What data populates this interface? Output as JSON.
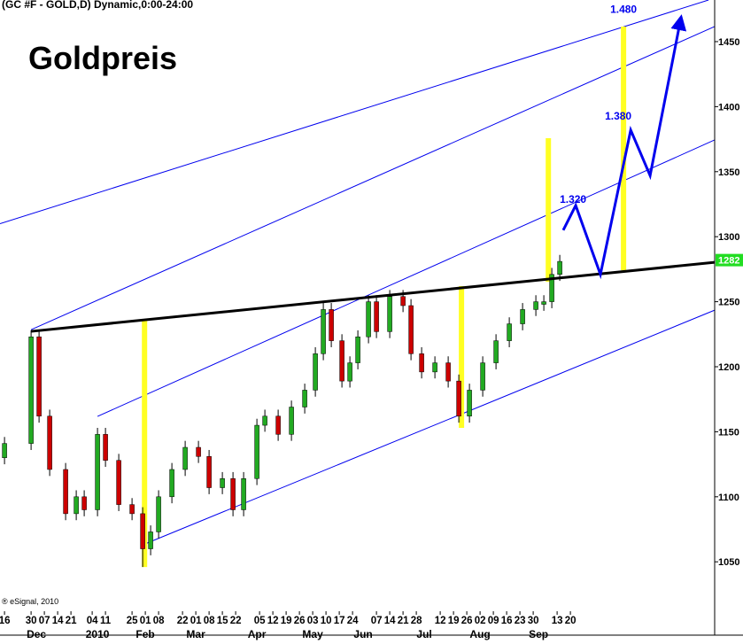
{
  "chart_data": {
    "type": "candlestick",
    "header": "(GC #F - GOLD,D) Dynamic,0:00-24:00",
    "title": "Goldpreis",
    "footer": "® eSignal, 2010",
    "xlim": [
      -1.7,
      267.3
    ],
    "ylim": [
      1012,
      1482
    ],
    "yticks": [
      1050,
      1100,
      1150,
      1200,
      1250,
      1300,
      1350,
      1400,
      1450
    ],
    "xticks": [
      {
        "value": 0,
        "label": "16"
      },
      {
        "value": 10,
        "label": "30"
      },
      {
        "value": 15,
        "label": "07"
      },
      {
        "value": 20,
        "label": "14"
      },
      {
        "value": 25,
        "label": "21"
      },
      {
        "value": 33,
        "label": "04"
      },
      {
        "value": 38,
        "label": "11"
      },
      {
        "value": 48,
        "label": "25"
      },
      {
        "value": 53,
        "label": "01"
      },
      {
        "value": 58,
        "label": "08"
      },
      {
        "value": 67,
        "label": "22"
      },
      {
        "value": 72,
        "label": "01"
      },
      {
        "value": 77,
        "label": "08"
      },
      {
        "value": 82,
        "label": "15"
      },
      {
        "value": 87,
        "label": "22"
      },
      {
        "value": 96,
        "label": "05"
      },
      {
        "value": 101,
        "label": "12"
      },
      {
        "value": 106,
        "label": "19"
      },
      {
        "value": 111,
        "label": "26"
      },
      {
        "value": 116,
        "label": "03"
      },
      {
        "value": 121,
        "label": "10"
      },
      {
        "value": 126,
        "label": "17"
      },
      {
        "value": 131,
        "label": "24"
      },
      {
        "value": 140,
        "label": "07"
      },
      {
        "value": 145,
        "label": "14"
      },
      {
        "value": 150,
        "label": "21"
      },
      {
        "value": 155,
        "label": "28"
      },
      {
        "value": 164,
        "label": "12"
      },
      {
        "value": 169,
        "label": "19"
      },
      {
        "value": 174,
        "label": "26"
      },
      {
        "value": 179,
        "label": "02"
      },
      {
        "value": 184,
        "label": "09"
      },
      {
        "value": 189,
        "label": "16"
      },
      {
        "value": 194,
        "label": "23"
      },
      {
        "value": 199,
        "label": "30"
      },
      {
        "value": 208,
        "label": "13"
      },
      {
        "value": 213,
        "label": "20"
      }
    ],
    "month_ticks": [
      {
        "value": 12,
        "label": "Dec"
      },
      {
        "value": 35,
        "label": "2010"
      },
      {
        "value": 53,
        "label": "Feb"
      },
      {
        "value": 72,
        "label": "Mar"
      },
      {
        "value": 95,
        "label": "Apr"
      },
      {
        "value": 116,
        "label": "May"
      },
      {
        "value": 135,
        "label": "Jun"
      },
      {
        "value": 158,
        "label": "Jul"
      },
      {
        "value": 179,
        "label": "Aug"
      },
      {
        "value": 201,
        "label": "Sep"
      }
    ],
    "up_color": "#22aa22",
    "down_color": "#cc0000",
    "x": [
      0,
      10,
      13,
      17,
      23,
      27,
      30,
      35,
      38,
      43,
      48,
      52,
      55,
      58,
      63,
      68,
      73,
      77,
      82,
      86,
      90,
      95,
      98,
      103,
      108,
      113,
      117,
      120,
      123,
      127,
      130,
      133,
      137,
      140,
      145,
      150,
      153,
      157,
      162,
      167,
      171,
      175,
      180,
      185,
      190,
      195,
      200,
      203,
      206,
      209
    ],
    "open": [
      1130,
      1141,
      1223,
      1162,
      1121,
      1087,
      1100,
      1090,
      1148,
      1128,
      1094,
      1087,
      1060,
      1073,
      1100,
      1121,
      1138,
      1131,
      1107,
      1114,
      1090,
      1114,
      1155,
      1162,
      1148,
      1169,
      1182,
      1210,
      1244,
      1220,
      1189,
      1203,
      1223,
      1250,
      1227,
      1254,
      1247,
      1210,
      1196,
      1203,
      1189,
      1162,
      1182,
      1203,
      1220,
      1233,
      1244,
      1248,
      1250,
      1271
    ],
    "high": [
      1146,
      1228,
      1228,
      1167,
      1126,
      1105,
      1105,
      1153,
      1153,
      1133,
      1099,
      1092,
      1078,
      1105,
      1126,
      1143,
      1143,
      1136,
      1119,
      1119,
      1119,
      1160,
      1167,
      1167,
      1174,
      1187,
      1215,
      1249,
      1249,
      1225,
      1208,
      1228,
      1255,
      1255,
      1259,
      1259,
      1252,
      1215,
      1208,
      1208,
      1194,
      1187,
      1208,
      1225,
      1238,
      1249,
      1255,
      1255,
      1276,
      1286
    ],
    "low": [
      1125,
      1136,
      1157,
      1116,
      1082,
      1082,
      1085,
      1085,
      1123,
      1089,
      1082,
      1046,
      1055,
      1068,
      1095,
      1116,
      1126,
      1102,
      1102,
      1085,
      1085,
      1109,
      1150,
      1143,
      1143,
      1164,
      1177,
      1205,
      1215,
      1184,
      1184,
      1198,
      1218,
      1222,
      1222,
      1242,
      1205,
      1191,
      1191,
      1184,
      1157,
      1157,
      1177,
      1198,
      1215,
      1228,
      1239,
      1243,
      1245,
      1266
    ],
    "close": [
      1141,
      1223,
      1162,
      1121,
      1087,
      1100,
      1090,
      1148,
      1128,
      1094,
      1087,
      1060,
      1073,
      1100,
      1121,
      1138,
      1131,
      1107,
      1114,
      1090,
      1114,
      1155,
      1162,
      1148,
      1169,
      1182,
      1210,
      1244,
      1220,
      1189,
      1203,
      1223,
      1250,
      1227,
      1254,
      1247,
      1210,
      1196,
      1203,
      1189,
      1162,
      1182,
      1203,
      1220,
      1233,
      1244,
      1250,
      1250,
      1271,
      1281
    ],
    "last_price": 1282,
    "last_price_color": "#22dd22",
    "channel_color": "#0000ee",
    "channel_lines": [
      {
        "x": [
          -1.7,
          265
        ],
        "y": [
          1310,
          1482
        ]
      },
      {
        "x": [
          10,
          267.3
        ],
        "y": [
          1228.5,
          1461.6
        ]
      },
      {
        "x": [
          35,
          267.3
        ],
        "y": [
          1161.8,
          1374.4
        ]
      },
      {
        "x": [
          52.7,
          267.3
        ],
        "y": [
          1063.6,
          1243.5
        ]
      }
    ],
    "trend_color": "#000000",
    "trend_line": {
      "x": [
        10,
        267.3
      ],
      "y": [
        1227.2,
        1280.3
      ]
    },
    "highlight_color": "#ffff22",
    "highlight_bars": [
      {
        "x": 52.7,
        "y": [
          1046,
          1235.4
        ]
      },
      {
        "x": 172,
        "y": [
          1153,
          1262
        ]
      },
      {
        "x": 204.7,
        "y": [
          1265.3,
          1375.7
        ]
      },
      {
        "x": 233,
        "y": [
          1274.2,
          1461.6
        ]
      }
    ],
    "forecast": {
      "color": "#0000ee",
      "x": [
        210.3,
        215,
        224.3,
        235.7,
        243,
        254.3
      ],
      "values": [
        1305,
        1324,
        1271,
        1382,
        1347,
        1465
      ]
    },
    "annotations": [
      {
        "text": "1.320",
        "x": 214,
        "y": 1326
      },
      {
        "text": "1.380",
        "x": 231,
        "y": 1390
      },
      {
        "text": "1.480",
        "x": 233,
        "y": 1472
      }
    ]
  }
}
